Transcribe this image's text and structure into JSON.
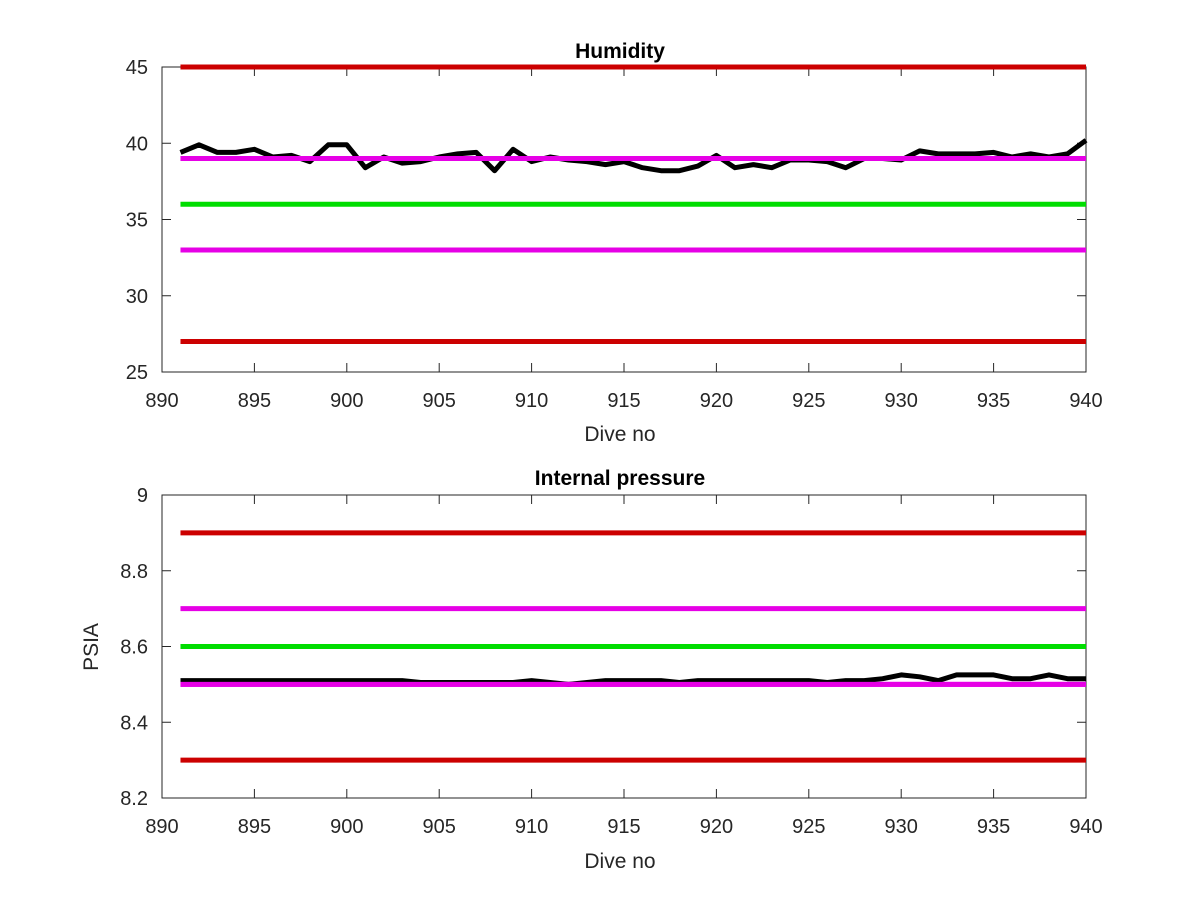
{
  "figure": {
    "background": "#ffffff",
    "axes_color": "#262626"
  },
  "chart_data": [
    {
      "type": "line",
      "title": "Humidity",
      "xlabel": "Dive no",
      "ylabel": "",
      "xlim": [
        890,
        940
      ],
      "ylim": [
        25,
        45
      ],
      "xticks": [
        890,
        895,
        900,
        905,
        910,
        915,
        920,
        925,
        930,
        935,
        940
      ],
      "yticks": [
        25,
        30,
        35,
        40,
        45
      ],
      "grid": false,
      "reference_lines": [
        {
          "y": 45,
          "color": "#cc0000"
        },
        {
          "y": 39,
          "color": "#e600e6"
        },
        {
          "y": 36,
          "color": "#00dd00"
        },
        {
          "y": 33,
          "color": "#e600e6"
        },
        {
          "y": 27,
          "color": "#cc0000"
        }
      ],
      "series": [
        {
          "color": "#000000",
          "x": [
            891,
            892,
            893,
            894,
            895,
            896,
            897,
            898,
            899,
            900,
            901,
            902,
            903,
            904,
            905,
            906,
            907,
            908,
            909,
            910,
            911,
            912,
            913,
            914,
            915,
            916,
            917,
            918,
            919,
            920,
            921,
            922,
            923,
            924,
            925,
            926,
            927,
            928,
            929,
            930,
            931,
            932,
            933,
            934,
            935,
            936,
            937,
            938,
            939,
            940
          ],
          "values": [
            39.4,
            39.9,
            39.4,
            39.4,
            39.6,
            39.1,
            39.2,
            38.8,
            39.9,
            39.9,
            38.4,
            39.1,
            38.7,
            38.8,
            39.1,
            39.3,
            39.4,
            38.2,
            39.6,
            38.8,
            39.1,
            38.9,
            38.8,
            38.6,
            38.8,
            38.4,
            38.2,
            38.2,
            38.5,
            39.2,
            38.4,
            38.6,
            38.4,
            38.9,
            38.9,
            38.8,
            38.4,
            39.0,
            39.0,
            38.9,
            39.5,
            39.3,
            39.3,
            39.3,
            39.4,
            39.1,
            39.3,
            39.1,
            39.3,
            40.2
          ]
        }
      ]
    },
    {
      "type": "line",
      "title": "Internal pressure",
      "xlabel": "Dive no",
      "ylabel": "PSIA",
      "xlim": [
        890,
        940
      ],
      "ylim": [
        8.2,
        9.0
      ],
      "xticks": [
        890,
        895,
        900,
        905,
        910,
        915,
        920,
        925,
        930,
        935,
        940
      ],
      "yticks": [
        8.2,
        8.4,
        8.6,
        8.8,
        9.0
      ],
      "ytick_labels": [
        "8.2",
        "8.4",
        "8.6",
        "8.8",
        "9"
      ],
      "grid": false,
      "reference_lines": [
        {
          "y": 8.9,
          "color": "#cc0000"
        },
        {
          "y": 8.7,
          "color": "#e600e6"
        },
        {
          "y": 8.6,
          "color": "#00dd00"
        },
        {
          "y": 8.5,
          "color": "#e600e6"
        },
        {
          "y": 8.3,
          "color": "#cc0000"
        }
      ],
      "series": [
        {
          "color": "#000000",
          "x": [
            891,
            892,
            893,
            894,
            895,
            896,
            897,
            898,
            899,
            900,
            901,
            902,
            903,
            904,
            905,
            906,
            907,
            908,
            909,
            910,
            911,
            912,
            913,
            914,
            915,
            916,
            917,
            918,
            919,
            920,
            921,
            922,
            923,
            924,
            925,
            926,
            927,
            928,
            929,
            930,
            931,
            932,
            933,
            934,
            935,
            936,
            937,
            938,
            939,
            940
          ],
          "values": [
            8.51,
            8.51,
            8.51,
            8.51,
            8.51,
            8.51,
            8.51,
            8.51,
            8.51,
            8.51,
            8.51,
            8.51,
            8.51,
            8.505,
            8.505,
            8.505,
            8.505,
            8.505,
            8.505,
            8.51,
            8.505,
            8.5,
            8.505,
            8.51,
            8.51,
            8.51,
            8.51,
            8.505,
            8.51,
            8.51,
            8.51,
            8.51,
            8.51,
            8.51,
            8.51,
            8.505,
            8.51,
            8.51,
            8.515,
            8.525,
            8.52,
            8.51,
            8.525,
            8.525,
            8.525,
            8.515,
            8.515,
            8.525,
            8.515,
            8.515
          ]
        }
      ]
    }
  ]
}
